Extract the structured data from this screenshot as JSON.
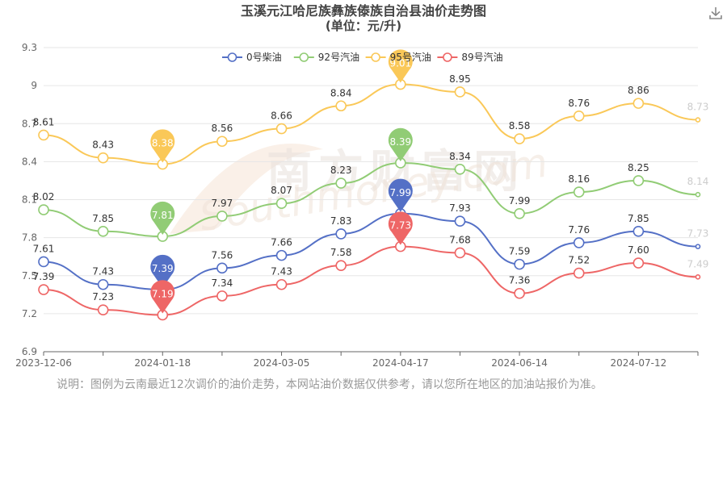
{
  "chart_data": {
    "type": "line",
    "title": "玉溪元江哈尼族彝族傣族自治县油价走势图",
    "subtitle": "(单位：元/升)",
    "x": [
      "2023-12-06",
      "",
      "2024-01-18",
      "",
      "2024-03-05",
      "",
      "2024-04-17",
      "",
      "2024-06-14",
      "",
      "2024-07-12",
      ""
    ],
    "x_tick_labels": [
      "2023-12-06",
      "2024-01-18",
      "2024-03-05",
      "2024-04-17",
      "2024-06-14",
      "2024-07-12"
    ],
    "y_ticks": [
      "6.9",
      "7.2",
      "7.5",
      "7.8",
      "8.1",
      "8.4",
      "8.7",
      "9",
      "9.3"
    ],
    "ylim": [
      6.9,
      9.3
    ],
    "grid": true,
    "legend_position": "top-center",
    "series": [
      {
        "name": "0号柴油",
        "color": "#5470c6",
        "values": [
          7.61,
          7.43,
          7.39,
          7.56,
          7.66,
          7.83,
          7.99,
          7.93,
          7.59,
          7.76,
          7.85,
          7.73
        ],
        "max_marker": {
          "index": 6,
          "label": "7.99"
        },
        "min_marker": {
          "index": 2,
          "label": "7.39"
        }
      },
      {
        "name": "92号汽油",
        "color": "#91cc75",
        "values": [
          8.02,
          7.85,
          7.81,
          7.97,
          8.07,
          8.23,
          8.39,
          8.34,
          7.99,
          8.16,
          8.25,
          8.14
        ],
        "max_marker": {
          "index": 6,
          "label": "8.39"
        },
        "min_marker": {
          "index": 2,
          "label": "7.81"
        }
      },
      {
        "name": "95号汽油",
        "color": "#fac858",
        "values": [
          8.61,
          8.43,
          8.38,
          8.56,
          8.66,
          8.84,
          9.01,
          8.95,
          8.58,
          8.76,
          8.86,
          8.73
        ],
        "max_marker": {
          "index": 6,
          "label": "9.01"
        },
        "min_marker": {
          "index": 2,
          "label": "8.38"
        }
      },
      {
        "name": "89号汽油",
        "color": "#ee6666",
        "values": [
          7.39,
          7.23,
          7.19,
          7.34,
          7.43,
          7.58,
          7.73,
          7.68,
          7.36,
          7.52,
          7.6,
          7.49
        ],
        "max_marker": {
          "index": 6,
          "label": "7.73"
        },
        "min_marker": {
          "index": 2,
          "label": "7.19"
        }
      }
    ],
    "legend_entries": [
      "0号柴油",
      "92号汽油",
      "95号汽油",
      "89号汽油"
    ]
  },
  "watermark": {
    "text_cn": "南方财富网",
    "text_en": "Southmoney.com"
  },
  "note": "说明：图例为云南最近12次调价的油价走势，本网站油价数据仅供参考，请以您所在地区的加油站报价为准。",
  "icons": {
    "download": "download-icon"
  }
}
